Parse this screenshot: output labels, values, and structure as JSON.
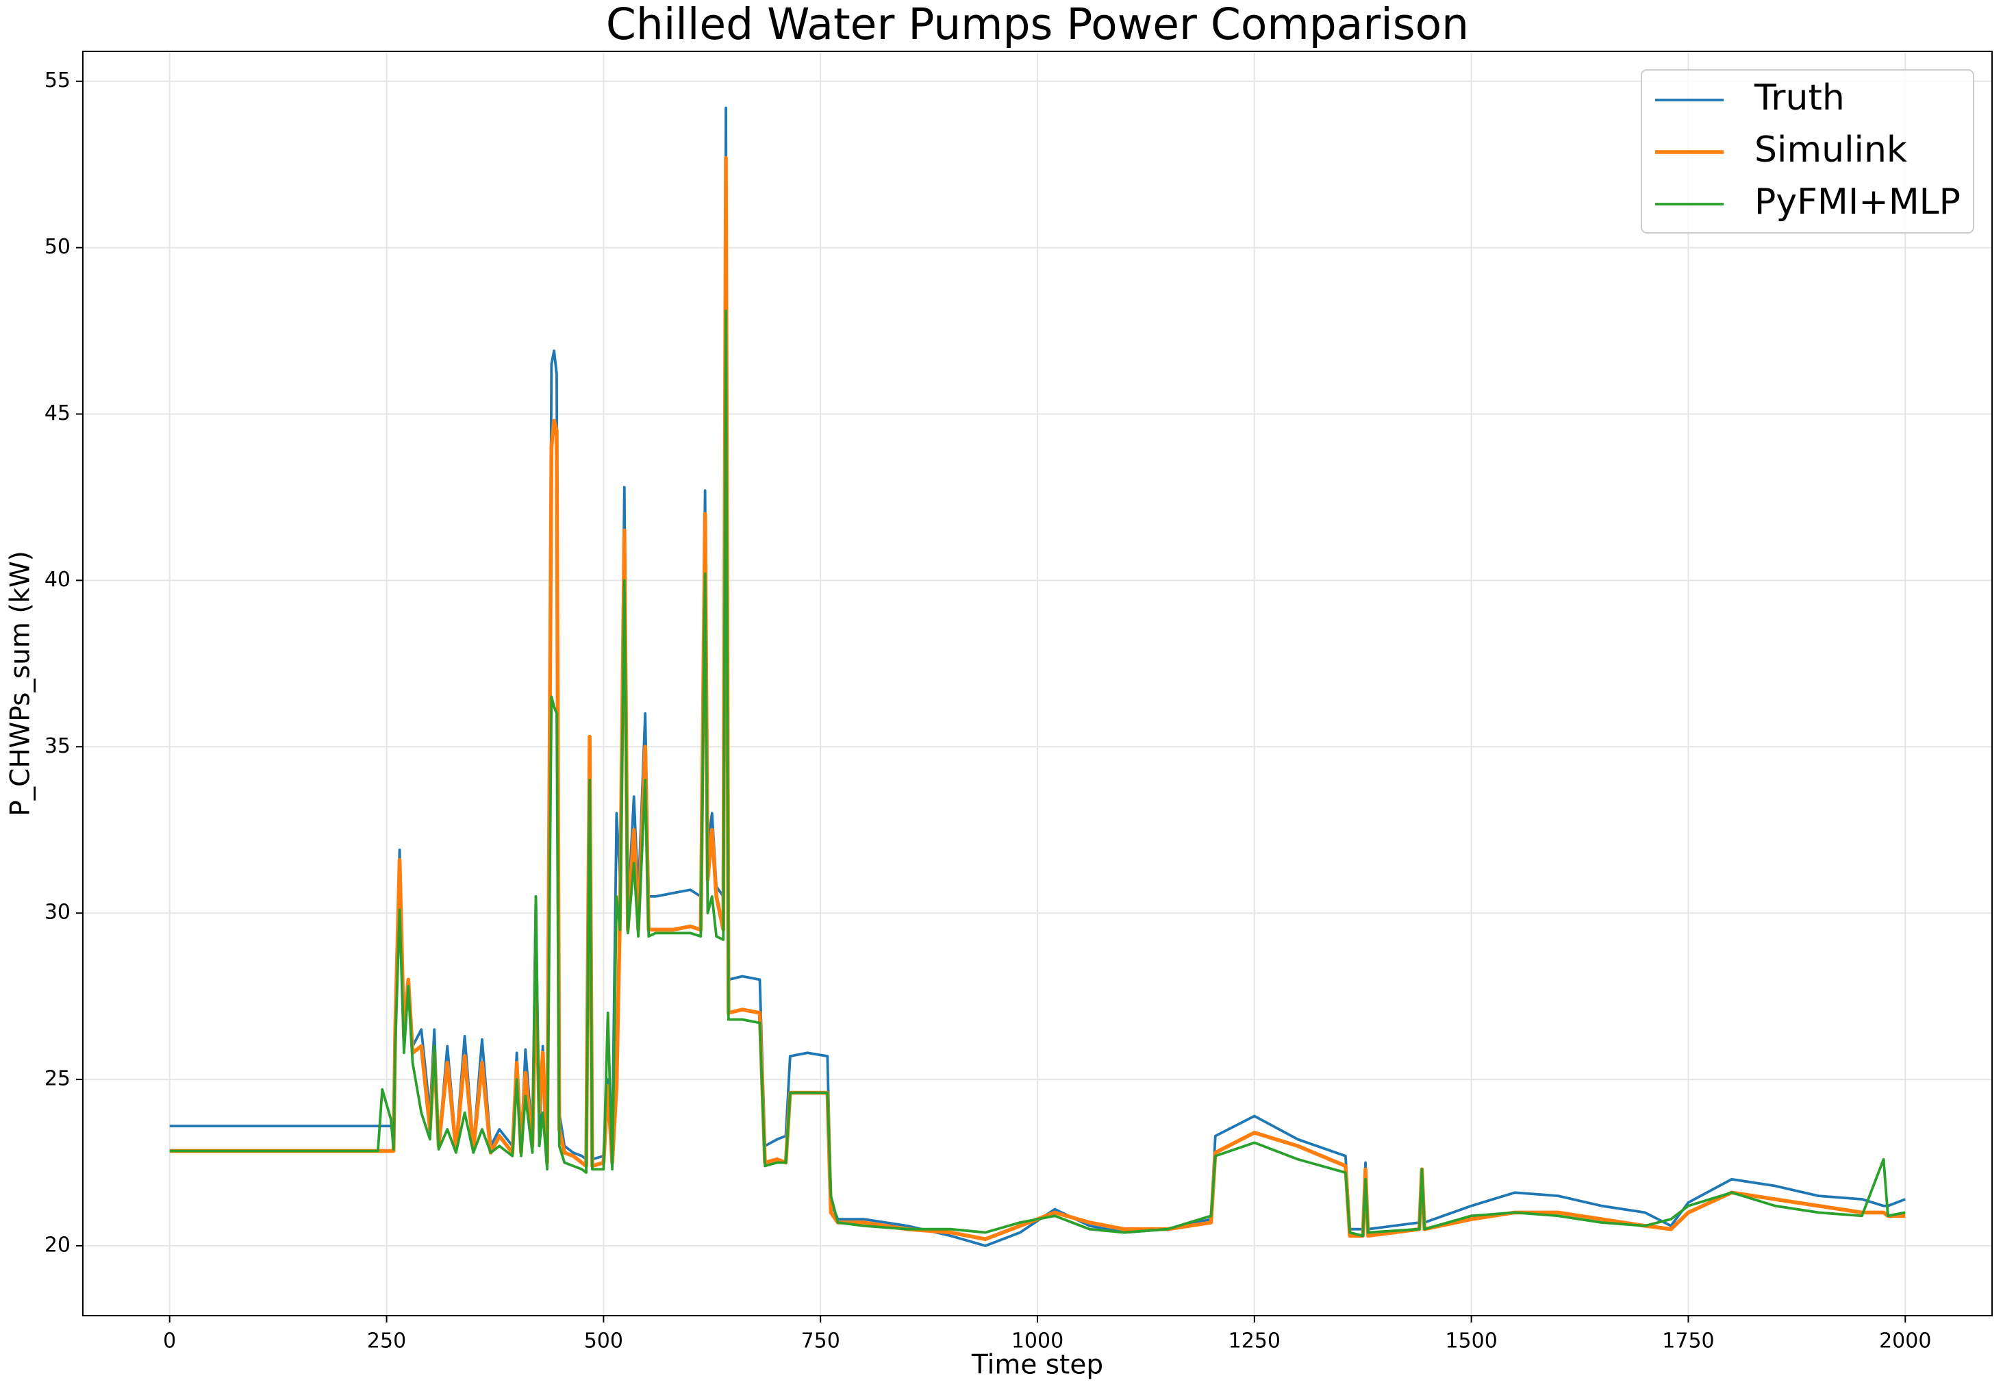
{
  "chart_data": {
    "type": "line",
    "title": "Chilled Water Pumps Power Comparison",
    "x_label": "Time step",
    "y_label": "P_CHWPs_sum (kW)",
    "x": [
      0,
      240,
      245,
      255,
      258,
      260,
      265,
      270,
      275,
      280,
      290,
      300,
      305,
      310,
      320,
      330,
      340,
      350,
      360,
      370,
      380,
      395,
      400,
      405,
      410,
      418,
      422,
      426,
      430,
      435,
      440,
      443,
      446,
      449,
      455,
      465,
      475,
      480,
      484,
      487,
      500,
      505,
      510,
      515,
      519,
      524,
      528,
      535,
      540,
      548,
      552,
      560,
      580,
      600,
      612,
      617,
      620,
      625,
      630,
      638,
      641,
      644,
      660,
      680,
      686,
      700,
      710,
      715,
      735,
      758,
      762,
      770,
      800,
      850,
      900,
      940,
      980,
      1020,
      1060,
      1100,
      1150,
      1200,
      1205,
      1250,
      1300,
      1355,
      1360,
      1375,
      1378,
      1381,
      1440,
      1443,
      1446,
      1500,
      1550,
      1600,
      1650,
      1700,
      1730,
      1750,
      1800,
      1850,
      1900,
      1950,
      1975,
      1980,
      2000
    ],
    "series": [
      {
        "name": "Truth",
        "color": "#1f77b4",
        "values": [
          23.6,
          23.6,
          23.6,
          23.6,
          23.6,
          26.5,
          31.9,
          26.5,
          28.0,
          26.0,
          26.5,
          24.0,
          26.5,
          23.0,
          26.0,
          23.0,
          26.3,
          23.0,
          26.2,
          23.0,
          23.5,
          23.0,
          25.8,
          23.0,
          25.9,
          23.2,
          30.5,
          23.0,
          26.0,
          22.5,
          46.5,
          46.9,
          46.2,
          24.0,
          23.0,
          22.8,
          22.7,
          22.6,
          35.2,
          22.6,
          22.7,
          25.0,
          23.0,
          33.0,
          31.0,
          42.8,
          30.0,
          33.5,
          30.5,
          36.0,
          30.5,
          30.5,
          30.6,
          30.7,
          30.5,
          42.7,
          32.0,
          33.0,
          30.8,
          30.5,
          54.2,
          28.0,
          28.1,
          28.0,
          23.0,
          23.2,
          23.3,
          25.7,
          25.8,
          25.7,
          21.3,
          20.8,
          20.8,
          20.6,
          20.3,
          20.0,
          20.4,
          21.1,
          20.6,
          20.4,
          20.5,
          20.8,
          23.3,
          23.9,
          23.2,
          22.7,
          20.5,
          20.5,
          22.5,
          20.5,
          20.7,
          22.3,
          20.7,
          21.2,
          21.6,
          21.5,
          21.2,
          21.0,
          20.6,
          21.3,
          22.0,
          21.8,
          21.5,
          21.4,
          21.2,
          21.2,
          21.4
        ]
      },
      {
        "name": "Simulink",
        "color": "#ff7f0e",
        "values": [
          22.85,
          22.85,
          22.85,
          22.85,
          22.85,
          26.5,
          31.6,
          26.3,
          28.0,
          25.8,
          26.0,
          23.5,
          25.8,
          23.0,
          25.5,
          22.9,
          25.7,
          22.9,
          25.5,
          22.8,
          23.3,
          22.8,
          25.5,
          22.8,
          25.2,
          23.0,
          28.0,
          24.0,
          25.8,
          22.5,
          44.0,
          44.8,
          44.5,
          23.5,
          22.8,
          22.7,
          22.5,
          22.4,
          35.3,
          22.4,
          22.5,
          24.8,
          22.5,
          24.8,
          30.0,
          41.5,
          29.5,
          32.5,
          29.5,
          35.0,
          29.5,
          29.5,
          29.5,
          29.6,
          29.5,
          42.0,
          31.0,
          32.5,
          30.5,
          29.5,
          52.7,
          27.0,
          27.1,
          27.0,
          22.5,
          22.6,
          22.5,
          24.6,
          24.6,
          24.6,
          21.0,
          20.7,
          20.7,
          20.5,
          20.4,
          20.2,
          20.6,
          21.0,
          20.7,
          20.5,
          20.5,
          20.7,
          22.8,
          23.4,
          23.0,
          22.4,
          20.3,
          20.3,
          22.3,
          20.3,
          20.5,
          22.3,
          20.5,
          20.8,
          21.0,
          21.0,
          20.8,
          20.6,
          20.5,
          21.0,
          21.6,
          21.4,
          21.2,
          21.0,
          21.0,
          20.9,
          20.9
        ]
      },
      {
        "name": "PyFMI+MLP",
        "color": "#2ca02c",
        "values": [
          22.85,
          22.85,
          24.7,
          23.8,
          22.9,
          26.0,
          30.1,
          25.8,
          27.8,
          25.5,
          24.0,
          23.2,
          26.0,
          22.9,
          23.5,
          22.8,
          24.0,
          22.8,
          23.5,
          22.8,
          23.0,
          22.7,
          25.0,
          22.7,
          24.5,
          22.8,
          30.5,
          23.0,
          24.0,
          22.3,
          36.5,
          36.2,
          36.0,
          23.0,
          22.5,
          22.4,
          22.3,
          22.2,
          34.0,
          22.3,
          22.3,
          27.0,
          22.3,
          30.5,
          29.5,
          40.0,
          29.4,
          31.5,
          29.3,
          34.0,
          29.3,
          29.4,
          29.4,
          29.4,
          29.3,
          40.2,
          30.0,
          30.5,
          29.3,
          29.2,
          48.1,
          26.8,
          26.8,
          26.7,
          22.4,
          22.5,
          22.5,
          24.6,
          24.6,
          24.6,
          21.5,
          20.7,
          20.6,
          20.5,
          20.5,
          20.4,
          20.7,
          20.9,
          20.5,
          20.4,
          20.5,
          20.9,
          22.7,
          23.1,
          22.6,
          22.2,
          20.4,
          20.3,
          22.0,
          20.4,
          20.5,
          22.3,
          20.5,
          20.9,
          21.0,
          20.9,
          20.7,
          20.6,
          20.8,
          21.2,
          21.6,
          21.2,
          21.0,
          20.9,
          22.6,
          20.9,
          21.0
        ]
      }
    ],
    "xlim": [
      -100,
      2100
    ],
    "ylim": [
      17.9,
      55.9
    ],
    "xticks": [
      0,
      250,
      500,
      750,
      1000,
      1250,
      1500,
      1750,
      2000
    ],
    "yticks": [
      20,
      25,
      30,
      35,
      40,
      45,
      50,
      55
    ],
    "grid": true,
    "legend": "upper right"
  }
}
